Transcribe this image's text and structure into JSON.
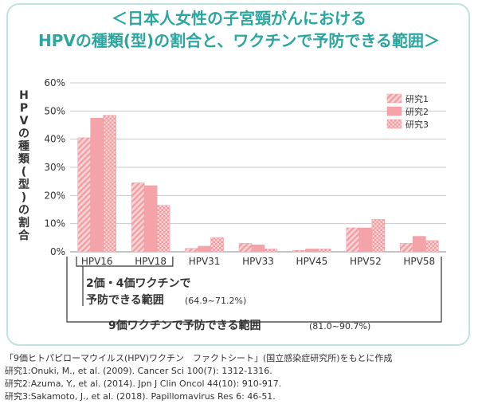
{
  "title_line1": "＜日本人女性の子宮頸がんにおける",
  "title_line2": "HPVの種類(型)の割合と、ワクチンで予防できる範囲＞",
  "chart_data": {
    "type": "bar",
    "ylabel": "HPVの種類(型)の割合",
    "ylim": [
      0,
      60
    ],
    "yticks": [
      "0%",
      "10%",
      "20%",
      "30%",
      "40%",
      "50%",
      "60%"
    ],
    "categories": [
      "HPV16",
      "HPV18",
      "HPV31",
      "HPV33",
      "HPV45",
      "HPV52",
      "HPV58"
    ],
    "series": [
      {
        "name": "研究1",
        "values": [
          40.5,
          24.5,
          1.2,
          3.0,
          0.5,
          8.5,
          3.0
        ]
      },
      {
        "name": "研究2",
        "values": [
          47.5,
          23.5,
          2.0,
          2.5,
          1.0,
          8.5,
          5.5
        ]
      },
      {
        "name": "研究3",
        "values": [
          48.5,
          16.5,
          5.0,
          1.0,
          1.0,
          11.5,
          4.0
        ]
      }
    ],
    "legend_position": "top-right",
    "grid": true,
    "annotations": {
      "bracket1_line1": "2価・4価ワクチンで",
      "bracket1_line2": "予防できる範囲",
      "bracket1_range": "(64.9~71.2%)",
      "bracket2_text": "9価ワクチンで予防できる範囲",
      "bracket2_range": "(81.0~90.7%)"
    }
  },
  "footnotes": [
    "「9価ヒトパピローマウイルス(HPV)ワクチン　ファクトシート」(国立感染症研究所)をもとに作成",
    "研究1:Onuki, M., et al. (2009). Cancer Sci 100(7): 1312-1316.",
    "研究2:Azuma, Y., et al. (2014).  Jpn J Clin Oncol 44(10): 910-917.",
    "研究3:Sakamoto, J., et al. (2018). Papillomavirus Res 6: 46-51."
  ],
  "colors": {
    "title": "#2aa6a0",
    "bar": "#f4a4a8",
    "grid": "#c8c8c8",
    "frame": "#bfe3df"
  }
}
